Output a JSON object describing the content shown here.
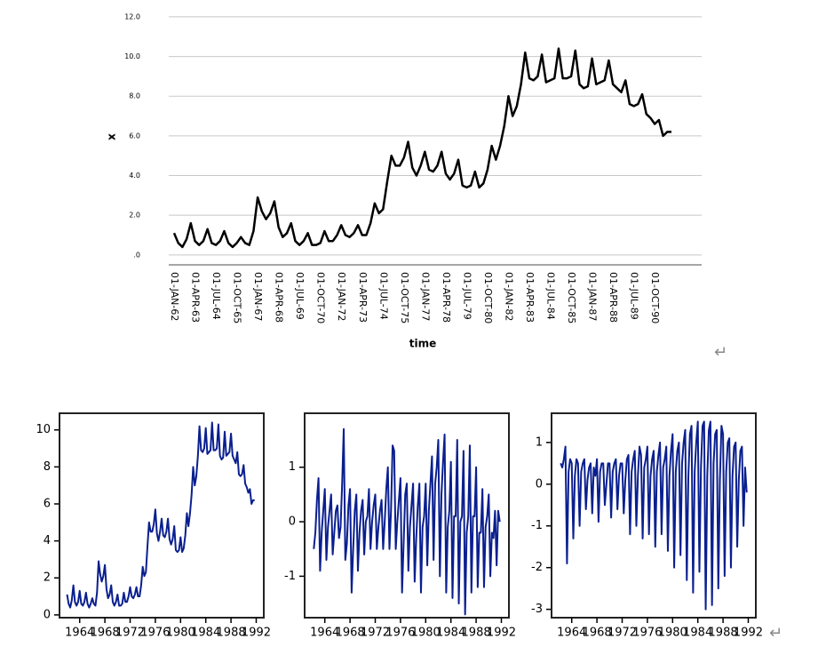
{
  "chart_data": [
    {
      "type": "line",
      "x_label": "time",
      "y_label": "x",
      "color": "#000000",
      "grid": true,
      "frame": false,
      "categories": [
        "01-JAN-62",
        null,
        null,
        null,
        null,
        "01-APR-63",
        null,
        null,
        null,
        null,
        "01-JUL-64",
        null,
        null,
        null,
        null,
        "01-OCT-65",
        null,
        null,
        null,
        null,
        "01-JAN-67",
        null,
        null,
        null,
        null,
        "01-APR-68",
        null,
        null,
        null,
        null,
        "01-JUL-69",
        null,
        null,
        null,
        null,
        "01-OCT-70",
        null,
        null,
        null,
        null,
        "01-JAN-72",
        null,
        null,
        null,
        null,
        "01-APR-73",
        null,
        null,
        null,
        null,
        "01-JUL-74",
        null,
        null,
        null,
        null,
        "01-OCT-75",
        null,
        null,
        null,
        null,
        "01-JAN-77",
        null,
        null,
        null,
        null,
        "01-APR-78",
        null,
        null,
        null,
        null,
        "01-JUL-79",
        null,
        null,
        null,
        null,
        "01-OCT-80",
        null,
        null,
        null,
        null,
        "01-JAN-82",
        null,
        null,
        null,
        null,
        "01-APR-83",
        null,
        null,
        null,
        null,
        "01-JUL-84",
        null,
        null,
        null,
        null,
        "01-OCT-85",
        null,
        null,
        null,
        null,
        "01-JAN-87",
        null,
        null,
        null,
        null,
        "01-APR-88",
        null,
        null,
        null,
        null,
        "01-JUL-89",
        null,
        null,
        null,
        null,
        "01-OCT-90",
        null,
        null,
        null,
        null
      ],
      "values": [
        1.1,
        0.6,
        0.4,
        0.8,
        1.6,
        0.7,
        0.5,
        0.7,
        1.3,
        0.6,
        0.5,
        0.7,
        1.2,
        0.6,
        0.4,
        0.6,
        0.9,
        0.6,
        0.5,
        1.2,
        2.9,
        2.2,
        1.8,
        2.1,
        2.7,
        1.4,
        0.9,
        1.1,
        1.6,
        0.7,
        0.5,
        0.7,
        1.1,
        0.5,
        0.5,
        0.6,
        1.2,
        0.7,
        0.7,
        1.0,
        1.5,
        1.0,
        0.9,
        1.1,
        1.5,
        1.0,
        1.0,
        1.6,
        2.6,
        2.1,
        2.3,
        3.7,
        5.0,
        4.5,
        4.5,
        4.9,
        5.7,
        4.4,
        4.0,
        4.5,
        5.2,
        4.3,
        4.2,
        4.5,
        5.2,
        4.1,
        3.8,
        4.1,
        4.8,
        3.5,
        3.4,
        3.5,
        4.2,
        3.4,
        3.6,
        4.3,
        5.5,
        4.8,
        5.5,
        6.5,
        8.0,
        7.0,
        7.5,
        8.6,
        10.2,
        8.9,
        8.8,
        9.0,
        10.1,
        8.7,
        8.8,
        8.9,
        10.4,
        8.9,
        8.9,
        9.0,
        10.3,
        8.6,
        8.4,
        8.5,
        9.9,
        8.6,
        8.7,
        8.8,
        9.8,
        8.6,
        8.4,
        8.2,
        8.8,
        7.6,
        7.5,
        7.6,
        8.1,
        7.1,
        6.9,
        6.6,
        6.8,
        6.0,
        6.2,
        6.2
      ],
      "ylim": [
        -0.5,
        12.4
      ],
      "yticks": [
        {
          "value": 0,
          "label": ".0"
        },
        {
          "value": 2,
          "label": "2.0"
        },
        {
          "value": 4,
          "label": "4.0"
        },
        {
          "value": 6,
          "label": "6.0"
        },
        {
          "value": 8,
          "label": "8.0"
        },
        {
          "value": 10,
          "label": "10.0"
        },
        {
          "value": 12,
          "label": "12.0"
        }
      ]
    },
    {
      "type": "line",
      "color": "#0a1f8f",
      "grid": false,
      "frame": true,
      "x": [
        1962,
        1962.25,
        1962.5,
        1962.75,
        1963,
        1963.25,
        1963.5,
        1963.75,
        1964,
        1964.25,
        1964.5,
        1964.75,
        1965,
        1965.25,
        1965.5,
        1965.75,
        1966,
        1966.25,
        1966.5,
        1966.75,
        1967,
        1967.25,
        1967.5,
        1967.75,
        1968,
        1968.25,
        1968.5,
        1968.75,
        1969,
        1969.25,
        1969.5,
        1969.75,
        1970,
        1970.25,
        1970.5,
        1970.75,
        1971,
        1971.25,
        1971.5,
        1971.75,
        1972,
        1972.25,
        1972.5,
        1972.75,
        1973,
        1973.25,
        1973.5,
        1973.75,
        1974,
        1974.25,
        1974.5,
        1974.75,
        1975,
        1975.25,
        1975.5,
        1975.75,
        1976,
        1976.25,
        1976.5,
        1976.75,
        1977,
        1977.25,
        1977.5,
        1977.75,
        1978,
        1978.25,
        1978.5,
        1978.75,
        1979,
        1979.25,
        1979.5,
        1979.75,
        1980,
        1980.25,
        1980.5,
        1980.75,
        1981,
        1981.25,
        1981.5,
        1981.75,
        1982,
        1982.25,
        1982.5,
        1982.75,
        1983,
        1983.25,
        1983.5,
        1983.75,
        1984,
        1984.25,
        1984.5,
        1984.75,
        1985,
        1985.25,
        1985.5,
        1985.75,
        1986,
        1986.25,
        1986.5,
        1986.75,
        1987,
        1987.25,
        1987.5,
        1987.75,
        1988,
        1988.25,
        1988.5,
        1988.75,
        1989,
        1989.25,
        1989.5,
        1989.75,
        1990,
        1990.25,
        1990.5,
        1990.75,
        1991,
        1991.25,
        1991.5,
        1991.75
      ],
      "values": [
        1.1,
        0.6,
        0.4,
        0.8,
        1.6,
        0.7,
        0.5,
        0.7,
        1.3,
        0.6,
        0.5,
        0.7,
        1.2,
        0.6,
        0.4,
        0.6,
        0.9,
        0.6,
        0.5,
        1.2,
        2.9,
        2.2,
        1.8,
        2.1,
        2.7,
        1.4,
        0.9,
        1.1,
        1.6,
        0.7,
        0.5,
        0.7,
        1.1,
        0.5,
        0.5,
        0.6,
        1.2,
        0.7,
        0.7,
        1.0,
        1.5,
        1.0,
        0.9,
        1.1,
        1.5,
        1.0,
        1.0,
        1.6,
        2.6,
        2.1,
        2.3,
        3.7,
        5.0,
        4.5,
        4.5,
        4.9,
        5.7,
        4.4,
        4.0,
        4.5,
        5.2,
        4.3,
        4.2,
        4.5,
        5.2,
        4.1,
        3.8,
        4.1,
        4.8,
        3.5,
        3.4,
        3.5,
        4.2,
        3.4,
        3.6,
        4.3,
        5.5,
        4.8,
        5.5,
        6.5,
        8.0,
        7.0,
        7.5,
        8.6,
        10.2,
        8.9,
        8.8,
        9.0,
        10.1,
        8.7,
        8.8,
        8.9,
        10.4,
        8.9,
        8.9,
        9.0,
        10.3,
        8.6,
        8.4,
        8.5,
        9.9,
        8.6,
        8.7,
        8.8,
        9.8,
        8.6,
        8.4,
        8.2,
        8.8,
        7.6,
        7.5,
        7.6,
        8.1,
        7.1,
        6.9,
        6.6,
        6.8,
        6.0,
        6.2,
        6.2
      ],
      "xlim": [
        1960.8,
        1993.2
      ],
      "xticks": [
        1964,
        1968,
        1972,
        1976,
        1980,
        1984,
        1988,
        1992
      ],
      "ylim": [
        -0.15,
        10.9
      ],
      "yticks": [
        0,
        2,
        4,
        6,
        8,
        10
      ]
    },
    {
      "type": "line",
      "color": "#0a1f8f",
      "grid": false,
      "frame": true,
      "x": [
        1962.25,
        1962.5,
        1962.75,
        1963,
        1963.25,
        1963.5,
        1963.75,
        1964,
        1964.25,
        1964.5,
        1964.75,
        1965,
        1965.25,
        1965.5,
        1965.75,
        1966,
        1966.25,
        1966.5,
        1966.75,
        1967,
        1967.25,
        1967.5,
        1967.75,
        1968,
        1968.25,
        1968.5,
        1968.75,
        1969,
        1969.25,
        1969.5,
        1969.75,
        1970,
        1970.25,
        1970.5,
        1970.75,
        1971,
        1971.25,
        1971.5,
        1971.75,
        1972,
        1972.25,
        1972.5,
        1972.75,
        1973,
        1973.25,
        1973.5,
        1973.75,
        1974,
        1974.25,
        1974.5,
        1974.75,
        1975,
        1975.25,
        1975.5,
        1975.75,
        1976,
        1976.25,
        1976.5,
        1976.75,
        1977,
        1977.25,
        1977.5,
        1977.75,
        1978,
        1978.25,
        1978.5,
        1978.75,
        1979,
        1979.25,
        1979.5,
        1979.75,
        1980,
        1980.25,
        1980.5,
        1980.75,
        1981,
        1981.25,
        1981.5,
        1981.75,
        1982,
        1982.25,
        1982.5,
        1982.75,
        1983,
        1983.25,
        1983.5,
        1983.75,
        1984,
        1984.25,
        1984.5,
        1984.75,
        1985,
        1985.25,
        1985.5,
        1985.75,
        1986,
        1986.25,
        1986.5,
        1986.75,
        1987,
        1987.25,
        1987.5,
        1987.75,
        1988,
        1988.25,
        1988.5,
        1988.75,
        1989,
        1989.25,
        1989.5,
        1989.75,
        1990,
        1990.25,
        1990.5,
        1990.75,
        1991,
        1991.25,
        1991.5,
        1991.75
      ],
      "values": [
        -0.5,
        -0.2,
        0.4,
        0.8,
        -0.9,
        -0.2,
        0.2,
        0.6,
        -0.7,
        -0.1,
        0.2,
        0.5,
        -0.6,
        -0.2,
        0.2,
        0.3,
        -0.3,
        -0.1,
        0.7,
        1.7,
        -0.7,
        -0.4,
        0.3,
        0.6,
        -1.3,
        -0.5,
        0.2,
        0.5,
        -0.9,
        -0.2,
        0.2,
        0.4,
        -0.6,
        0,
        0.1,
        0.6,
        -0.5,
        0,
        0.3,
        0.5,
        -0.5,
        -0.1,
        0.2,
        0.4,
        -0.5,
        0,
        0.6,
        1.0,
        -0.5,
        0.2,
        1.4,
        1.3,
        -0.5,
        0,
        0.4,
        0.8,
        -1.3,
        -0.4,
        0.5,
        0.7,
        -0.9,
        -0.1,
        0.3,
        0.7,
        -1.1,
        -0.3,
        0.3,
        0.7,
        -1.3,
        -0.1,
        0.1,
        0.7,
        -0.8,
        0.2,
        0.7,
        1.2,
        -0.7,
        0.7,
        1.0,
        1.5,
        -1.0,
        0.5,
        1.1,
        1.6,
        -1.3,
        -0.1,
        0.2,
        1.1,
        -1.4,
        0.1,
        0.1,
        1.5,
        -1.5,
        0,
        0.1,
        1.3,
        -1.7,
        -0.2,
        0.1,
        1.4,
        -1.3,
        0.1,
        0.1,
        1.0,
        -1.2,
        -0.2,
        -0.2,
        0.6,
        -1.2,
        -0.1,
        0.1,
        0.5,
        -1.0,
        -0.2,
        -0.3,
        0.2,
        -0.8,
        0.2,
        0
      ],
      "xlim": [
        1960.8,
        1993.2
      ],
      "xticks": [
        1964,
        1968,
        1972,
        1976,
        1980,
        1984,
        1988,
        1992
      ],
      "ylim": [
        -1.76,
        1.99
      ],
      "yticks": [
        -1,
        0,
        1
      ]
    },
    {
      "type": "line",
      "color": "#0a1f8f",
      "grid": false,
      "frame": true,
      "x": [
        1962.25,
        1962.5,
        1962.75,
        1963,
        1963.25,
        1963.5,
        1963.75,
        1964,
        1964.25,
        1964.5,
        1964.75,
        1965,
        1965.25,
        1965.5,
        1965.75,
        1966,
        1966.25,
        1966.5,
        1966.75,
        1967,
        1967.25,
        1967.5,
        1967.75,
        1968,
        1968.25,
        1968.5,
        1968.75,
        1969,
        1969.25,
        1969.5,
        1969.75,
        1970,
        1970.25,
        1970.5,
        1970.75,
        1971,
        1971.25,
        1971.5,
        1971.75,
        1972,
        1972.25,
        1972.5,
        1972.75,
        1973,
        1973.25,
        1973.5,
        1973.75,
        1974,
        1974.25,
        1974.5,
        1974.75,
        1975,
        1975.25,
        1975.5,
        1975.75,
        1976,
        1976.25,
        1976.5,
        1976.75,
        1977,
        1977.25,
        1977.5,
        1977.75,
        1978,
        1978.25,
        1978.5,
        1978.75,
        1979,
        1979.25,
        1979.5,
        1979.75,
        1980,
        1980.25,
        1980.5,
        1980.75,
        1981,
        1981.25,
        1981.5,
        1981.75,
        1982,
        1982.25,
        1982.5,
        1982.75,
        1983,
        1983.25,
        1983.5,
        1983.75,
        1984,
        1984.25,
        1984.5,
        1984.75,
        1985,
        1985.25,
        1985.5,
        1985.75,
        1986,
        1986.25,
        1986.5,
        1986.75,
        1987,
        1987.25,
        1987.5,
        1987.75,
        1988,
        1988.25,
        1988.5,
        1988.75,
        1989,
        1989.25,
        1989.5,
        1989.75,
        1990,
        1990.25,
        1990.5,
        1990.75,
        1991,
        1991.25,
        1991.5,
        1991.75
      ],
      "values": [
        0.5,
        0.4,
        0.6,
        0.9,
        -1.9,
        0.3,
        0.6,
        0.5,
        -1.3,
        0.2,
        0.6,
        0.5,
        -1.0,
        0.3,
        0.5,
        0.6,
        -0.6,
        0.1,
        0.4,
        0.5,
        -0.7,
        0.4,
        0.2,
        0.6,
        -0.9,
        0.3,
        0.5,
        0.5,
        -0.5,
        0.0,
        0.5,
        0.5,
        -0.8,
        0.3,
        0.5,
        0.6,
        -0.6,
        0.2,
        0.5,
        0.5,
        -0.7,
        0.1,
        0.6,
        0.7,
        -1.2,
        0.3,
        0.6,
        0.8,
        -1.0,
        0.2,
        0.9,
        0.7,
        -1.3,
        0.4,
        0.6,
        0.9,
        -1.2,
        0.2,
        0.6,
        0.8,
        -1.5,
        0.3,
        0.7,
        1.0,
        -1.2,
        0.4,
        0.6,
        0.9,
        -1.6,
        0.2,
        0.8,
        1.2,
        -2.0,
        0.3,
        0.8,
        1.0,
        -1.7,
        0.5,
        1.0,
        1.3,
        -2.3,
        0.2,
        1.2,
        1.4,
        -2.6,
        0.3,
        1.0,
        1.5,
        -2.1,
        0.4,
        1.4,
        1.5,
        -3.0,
        0.2,
        1.3,
        1.5,
        -2.9,
        0.5,
        1.2,
        1.3,
        -2.5,
        0.1,
        1.4,
        1.2,
        -2.2,
        0.3,
        1.0,
        1.1,
        -2.0,
        0.2,
        0.9,
        1.0,
        -1.5,
        0.1,
        0.8,
        0.9,
        -1.0,
        0.4,
        -0.2
      ],
      "xlim": [
        1960.8,
        1993.2
      ],
      "xticks": [
        1964,
        1968,
        1972,
        1976,
        1980,
        1984,
        1988,
        1992
      ],
      "ylim": [
        -3.2,
        1.7
      ],
      "yticks": [
        -3,
        -2,
        -1,
        0,
        1
      ]
    }
  ],
  "paragraph_marks": [
    "↵",
    "↵"
  ]
}
